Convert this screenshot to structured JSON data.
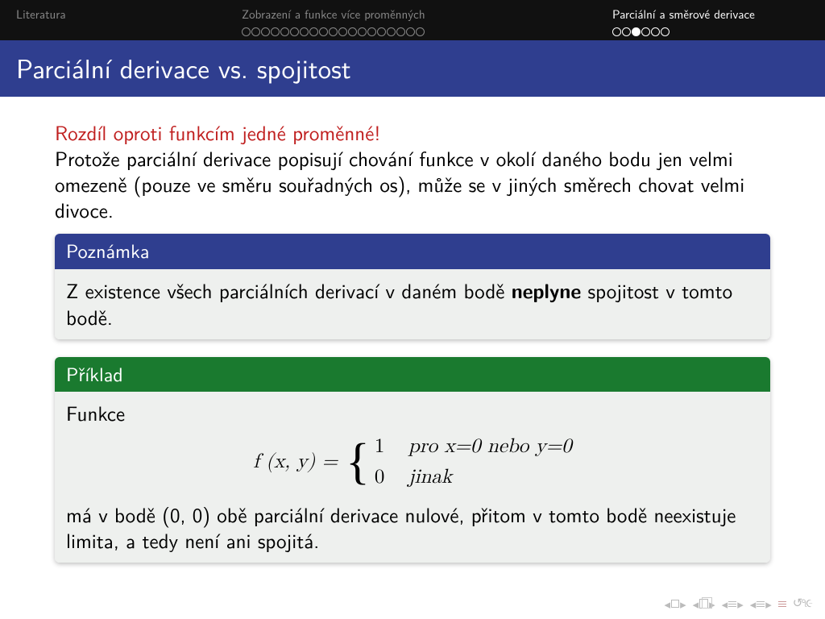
{
  "nav": {
    "sections": [
      {
        "title": "Literatura",
        "active": false,
        "dots": {
          "count": 0,
          "filled": -1,
          "active": false
        }
      },
      {
        "title": "Zobrazení a funkce více proměnných",
        "active": false,
        "dots": {
          "count": 19,
          "filled": -1,
          "active": false
        }
      },
      {
        "title": "Parciální a směrové derivace",
        "active": true,
        "dots": {
          "count": 6,
          "filled": 2,
          "active": true
        }
      }
    ]
  },
  "frametitle": "Parciální derivace vs. spojitost",
  "alert": "Rozdíl oproti funkcím jedné proměnné!",
  "paragraph": "Protože parciální derivace popisují chování funkce v okolí daného bodu jen velmi omezeně (pouze ve směru souřadných os), může se v jiných směrech chovat velmi divoce.",
  "note_block": {
    "title": "Poznámka",
    "body_pre": "Z existence všech parciálních derivací v daném bodě ",
    "body_bold": "neplyne",
    "body_post": " spojitost v tomto bodě."
  },
  "example_block": {
    "title": "Příklad",
    "intro": "Funkce",
    "lhs": "f (x, y) = ",
    "case1_val": "1",
    "case1_cond": "pro x=0 nebo y=0",
    "case2_val": "0",
    "case2_cond": "jinak",
    "outro": "má v bodě (0, 0) obě parciální derivace nulové, přitom v tomto bodě neexistuje limita, a tedy není ani spojitá."
  },
  "colors": {
    "nav_bg": "#111111",
    "nav_inactive": "#888888",
    "nav_active": "#ffffff",
    "title_bg": "#2f3e8f",
    "alert": "#c02020",
    "example_bg": "#1a7a2f",
    "block_body_bg": "#eef0ee"
  }
}
